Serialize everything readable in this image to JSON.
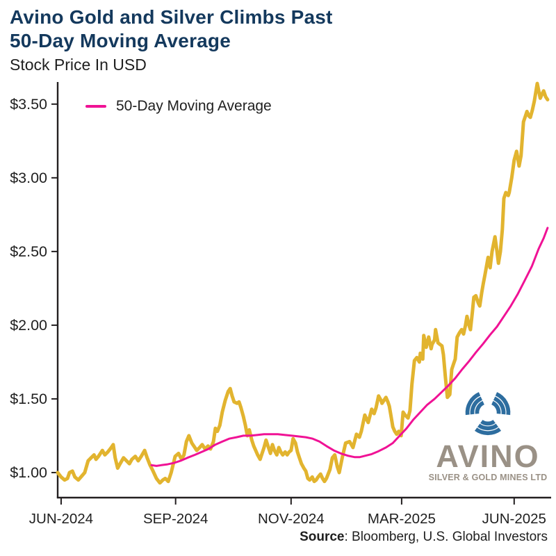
{
  "header": {
    "title_line1": "Avino Gold and Silver Climbs Past",
    "title_line2": "50-Day Moving Average",
    "subtitle": "Stock Price In USD"
  },
  "source": {
    "label": "Source",
    "text": ": Bloomberg, U.S. Global Investors"
  },
  "logo": {
    "word": "AVINO",
    "subtext": "SILVER & GOLD MINES LTD"
  },
  "colors": {
    "title": "#14395D",
    "text": "#1F1F1F",
    "axis": "#231F20",
    "gold_line": "#E2B42F",
    "ma_line": "#F01295",
    "logo_blue": "#2D6D9F",
    "logo_gray": "#9A9186"
  },
  "chart_data": {
    "type": "line",
    "title": "Avino Gold and Silver Climbs Past 50-Day Moving Average",
    "ylabel": "Stock Price In USD",
    "grid": false,
    "ylim": [
      0.83,
      3.65
    ],
    "x_note": "x = percent along time axis (trading days, Jun-2024 to Jun-2025)",
    "legend": {
      "label": "50-Day Moving Average",
      "position": "top-left"
    },
    "y_ticks": [
      {
        "value": 1.0,
        "label": "$1.00"
      },
      {
        "value": 1.5,
        "label": "$1.50"
      },
      {
        "value": 2.0,
        "label": "$2.00"
      },
      {
        "value": 2.5,
        "label": "$2.50"
      },
      {
        "value": 3.0,
        "label": "$3.00"
      },
      {
        "value": 3.5,
        "label": "$3.50"
      }
    ],
    "x_ticks": [
      {
        "pos": 0.7,
        "label": "JUN-2024"
      },
      {
        "pos": 24.0,
        "label": "SEP-2024"
      },
      {
        "pos": 47.5,
        "label": "NOV-2024"
      },
      {
        "pos": 70.0,
        "label": "MAR-2025"
      },
      {
        "pos": 92.9,
        "label": "JUN-2025"
      }
    ],
    "series": [
      {
        "name": "Avino Silver & Gold Mines stock price (USD)",
        "color_key": "gold_line",
        "width": 5,
        "points": [
          [
            0,
            1.0
          ],
          [
            0.7,
            0.97
          ],
          [
            1.4,
            0.95
          ],
          [
            2.0,
            0.96
          ],
          [
            2.4,
            1.0
          ],
          [
            3.0,
            1.01
          ],
          [
            3.5,
            0.97
          ],
          [
            4.2,
            0.95
          ],
          [
            5.0,
            0.98
          ],
          [
            5.5,
            1.0
          ],
          [
            6.2,
            1.08
          ],
          [
            6.8,
            1.1
          ],
          [
            7.4,
            1.12
          ],
          [
            7.8,
            1.09
          ],
          [
            8.3,
            1.11
          ],
          [
            9.1,
            1.15
          ],
          [
            9.6,
            1.12
          ],
          [
            10.2,
            1.14
          ],
          [
            10.9,
            1.17
          ],
          [
            11.3,
            1.19
          ],
          [
            11.7,
            1.1
          ],
          [
            12.2,
            1.03
          ],
          [
            12.7,
            1.06
          ],
          [
            13.4,
            1.1
          ],
          [
            14.0,
            1.08
          ],
          [
            14.6,
            1.06
          ],
          [
            15.1,
            1.09
          ],
          [
            15.8,
            1.11
          ],
          [
            16.4,
            1.08
          ],
          [
            17.0,
            1.11
          ],
          [
            17.7,
            1.15
          ],
          [
            18.2,
            1.1
          ],
          [
            18.8,
            1.05
          ],
          [
            19.4,
            1.01
          ],
          [
            20.1,
            0.96
          ],
          [
            20.8,
            0.93
          ],
          [
            21.4,
            0.95
          ],
          [
            21.9,
            0.96
          ],
          [
            22.5,
            0.94
          ],
          [
            23.1,
            1.0
          ],
          [
            23.9,
            1.11
          ],
          [
            24.6,
            1.13
          ],
          [
            25.2,
            1.09
          ],
          [
            25.7,
            1.12
          ],
          [
            26.2,
            1.21
          ],
          [
            26.7,
            1.25
          ],
          [
            27.3,
            1.2
          ],
          [
            27.9,
            1.17
          ],
          [
            28.3,
            1.15
          ],
          [
            28.9,
            1.17
          ],
          [
            29.4,
            1.19
          ],
          [
            30.0,
            1.16
          ],
          [
            30.6,
            1.18
          ],
          [
            31.1,
            1.16
          ],
          [
            31.7,
            1.21
          ],
          [
            32.1,
            1.3
          ],
          [
            32.5,
            1.28
          ],
          [
            33.0,
            1.32
          ],
          [
            33.5,
            1.41
          ],
          [
            34.1,
            1.49
          ],
          [
            34.7,
            1.55
          ],
          [
            35.1,
            1.57
          ],
          [
            35.5,
            1.52
          ],
          [
            35.9,
            1.48
          ],
          [
            36.5,
            1.47
          ],
          [
            36.9,
            1.48
          ],
          [
            37.3,
            1.44
          ],
          [
            37.8,
            1.38
          ],
          [
            38.2,
            1.32
          ],
          [
            38.6,
            1.25
          ],
          [
            39.0,
            1.29
          ],
          [
            39.5,
            1.22
          ],
          [
            39.9,
            1.18
          ],
          [
            40.3,
            1.15
          ],
          [
            40.7,
            1.12
          ],
          [
            41.2,
            1.09
          ],
          [
            41.6,
            1.13
          ],
          [
            42.0,
            1.17
          ],
          [
            42.4,
            1.22
          ],
          [
            42.9,
            1.17
          ],
          [
            43.3,
            1.13
          ],
          [
            43.7,
            1.19
          ],
          [
            44.1,
            1.15
          ],
          [
            44.6,
            1.12
          ],
          [
            45.0,
            1.17
          ],
          [
            45.4,
            1.14
          ],
          [
            45.8,
            1.12
          ],
          [
            46.3,
            1.14
          ],
          [
            46.7,
            1.12
          ],
          [
            47.1,
            1.14
          ],
          [
            47.5,
            1.15
          ],
          [
            47.9,
            1.23
          ],
          [
            48.4,
            1.2
          ],
          [
            48.8,
            1.14
          ],
          [
            49.2,
            1.1
          ],
          [
            49.6,
            1.06
          ],
          [
            50.1,
            1.03
          ],
          [
            50.5,
            1.01
          ],
          [
            50.9,
            0.96
          ],
          [
            51.3,
            0.95
          ],
          [
            51.8,
            0.97
          ],
          [
            52.2,
            0.94
          ],
          [
            52.6,
            0.95
          ],
          [
            53.0,
            0.97
          ],
          [
            53.5,
            0.99
          ],
          [
            53.9,
            0.96
          ],
          [
            54.3,
            0.94
          ],
          [
            54.7,
            0.96
          ],
          [
            55.4,
            1.02
          ],
          [
            55.9,
            1.1
          ],
          [
            56.4,
            1.12
          ],
          [
            56.9,
            1.04
          ],
          [
            57.3,
            1.0
          ],
          [
            57.9,
            1.1
          ],
          [
            58.6,
            1.2
          ],
          [
            59.4,
            1.21
          ],
          [
            60.1,
            1.17
          ],
          [
            60.8,
            1.26
          ],
          [
            61.4,
            1.24
          ],
          [
            61.8,
            1.28
          ],
          [
            62.5,
            1.39
          ],
          [
            62.9,
            1.36
          ],
          [
            63.2,
            1.34
          ],
          [
            63.9,
            1.43
          ],
          [
            64.4,
            1.4
          ],
          [
            64.8,
            1.44
          ],
          [
            65.3,
            1.52
          ],
          [
            65.8,
            1.49
          ],
          [
            66.0,
            1.47
          ],
          [
            66.8,
            1.51
          ],
          [
            67.2,
            1.48
          ],
          [
            67.5,
            1.45
          ],
          [
            67.9,
            1.37
          ],
          [
            68.2,
            1.31
          ],
          [
            68.6,
            1.28
          ],
          [
            69.0,
            1.26
          ],
          [
            69.4,
            1.28
          ],
          [
            69.9,
            1.25
          ],
          [
            70.3,
            1.41
          ],
          [
            70.7,
            1.39
          ],
          [
            71.3,
            1.37
          ],
          [
            71.7,
            1.42
          ],
          [
            72.1,
            1.6
          ],
          [
            72.6,
            1.76
          ],
          [
            73.1,
            1.78
          ],
          [
            73.6,
            1.75
          ],
          [
            73.8,
            1.81
          ],
          [
            74.3,
            1.77
          ],
          [
            74.5,
            1.93
          ],
          [
            75.0,
            1.85
          ],
          [
            75.5,
            1.92
          ],
          [
            76.0,
            1.84
          ],
          [
            76.2,
            1.87
          ],
          [
            76.7,
            1.9
          ],
          [
            76.9,
            1.97
          ],
          [
            77.4,
            1.88
          ],
          [
            77.8,
            1.87
          ],
          [
            78.2,
            1.86
          ],
          [
            78.5,
            1.8
          ],
          [
            78.9,
            1.65
          ],
          [
            79.3,
            1.51
          ],
          [
            79.8,
            1.53
          ],
          [
            80.2,
            1.7
          ],
          [
            80.6,
            1.74
          ],
          [
            80.9,
            1.77
          ],
          [
            81.3,
            1.92
          ],
          [
            81.8,
            1.95
          ],
          [
            82.2,
            1.97
          ],
          [
            82.6,
            1.94
          ],
          [
            83.0,
            2.0
          ],
          [
            83.3,
            2.06
          ],
          [
            83.7,
            2.0
          ],
          [
            84.0,
            1.97
          ],
          [
            84.4,
            2.09
          ],
          [
            84.7,
            2.19
          ],
          [
            85.1,
            2.2
          ],
          [
            85.6,
            2.15
          ],
          [
            85.9,
            2.13
          ],
          [
            86.3,
            2.22
          ],
          [
            86.6,
            2.28
          ],
          [
            87.0,
            2.35
          ],
          [
            87.6,
            2.46
          ],
          [
            88.0,
            2.39
          ],
          [
            88.4,
            2.5
          ],
          [
            89.0,
            2.6
          ],
          [
            89.4,
            2.5
          ],
          [
            89.7,
            2.42
          ],
          [
            90.1,
            2.5
          ],
          [
            90.5,
            2.65
          ],
          [
            90.8,
            2.86
          ],
          [
            91.2,
            2.9
          ],
          [
            91.7,
            2.88
          ],
          [
            91.9,
            2.9
          ],
          [
            92.4,
            3.0
          ],
          [
            92.9,
            3.12
          ],
          [
            93.4,
            3.18
          ],
          [
            93.9,
            3.08
          ],
          [
            94.3,
            3.15
          ],
          [
            94.8,
            3.38
          ],
          [
            95.2,
            3.42
          ],
          [
            95.5,
            3.45
          ],
          [
            95.9,
            3.42
          ],
          [
            96.2,
            3.41
          ],
          [
            96.6,
            3.46
          ],
          [
            97.0,
            3.52
          ],
          [
            97.6,
            3.64
          ],
          [
            98.2,
            3.54
          ],
          [
            98.6,
            3.57
          ],
          [
            98.9,
            3.59
          ],
          [
            99.3,
            3.55
          ],
          [
            99.7,
            3.53
          ]
        ]
      },
      {
        "name": "50-Day Moving Average",
        "color_key": "ma_line",
        "width": 3,
        "points": [
          [
            19.1,
            1.05
          ],
          [
            20.1,
            1.045
          ],
          [
            21.1,
            1.05
          ],
          [
            22.2,
            1.055
          ],
          [
            23.6,
            1.065
          ],
          [
            25.0,
            1.08
          ],
          [
            26.4,
            1.1
          ],
          [
            27.9,
            1.12
          ],
          [
            29.3,
            1.14
          ],
          [
            30.7,
            1.16
          ],
          [
            32.1,
            1.19
          ],
          [
            33.5,
            1.21
          ],
          [
            34.9,
            1.23
          ],
          [
            36.4,
            1.24
          ],
          [
            37.8,
            1.25
          ],
          [
            39.2,
            1.25
          ],
          [
            40.6,
            1.255
          ],
          [
            42.0,
            1.26
          ],
          [
            43.4,
            1.26
          ],
          [
            44.8,
            1.26
          ],
          [
            46.3,
            1.255
          ],
          [
            47.7,
            1.25
          ],
          [
            49.1,
            1.245
          ],
          [
            50.5,
            1.24
          ],
          [
            51.9,
            1.23
          ],
          [
            53.3,
            1.21
          ],
          [
            54.7,
            1.18
          ],
          [
            56.2,
            1.15
          ],
          [
            57.6,
            1.13
          ],
          [
            59.0,
            1.115
          ],
          [
            60.4,
            1.105
          ],
          [
            61.5,
            1.105
          ],
          [
            62.7,
            1.115
          ],
          [
            63.9,
            1.125
          ],
          [
            65.3,
            1.145
          ],
          [
            66.8,
            1.17
          ],
          [
            68.2,
            1.2
          ],
          [
            69.6,
            1.25
          ],
          [
            71.0,
            1.3
          ],
          [
            72.4,
            1.36
          ],
          [
            73.8,
            1.41
          ],
          [
            75.2,
            1.46
          ],
          [
            76.7,
            1.5
          ],
          [
            78.1,
            1.545
          ],
          [
            79.5,
            1.59
          ],
          [
            80.9,
            1.64
          ],
          [
            82.3,
            1.7
          ],
          [
            83.7,
            1.755
          ],
          [
            85.1,
            1.815
          ],
          [
            86.6,
            1.875
          ],
          [
            88.0,
            1.935
          ],
          [
            89.4,
            1.99
          ],
          [
            90.8,
            2.06
          ],
          [
            92.2,
            2.13
          ],
          [
            93.6,
            2.21
          ],
          [
            95.0,
            2.3
          ],
          [
            96.5,
            2.4
          ],
          [
            97.9,
            2.52
          ],
          [
            98.9,
            2.59
          ],
          [
            99.7,
            2.66
          ]
        ]
      }
    ]
  }
}
